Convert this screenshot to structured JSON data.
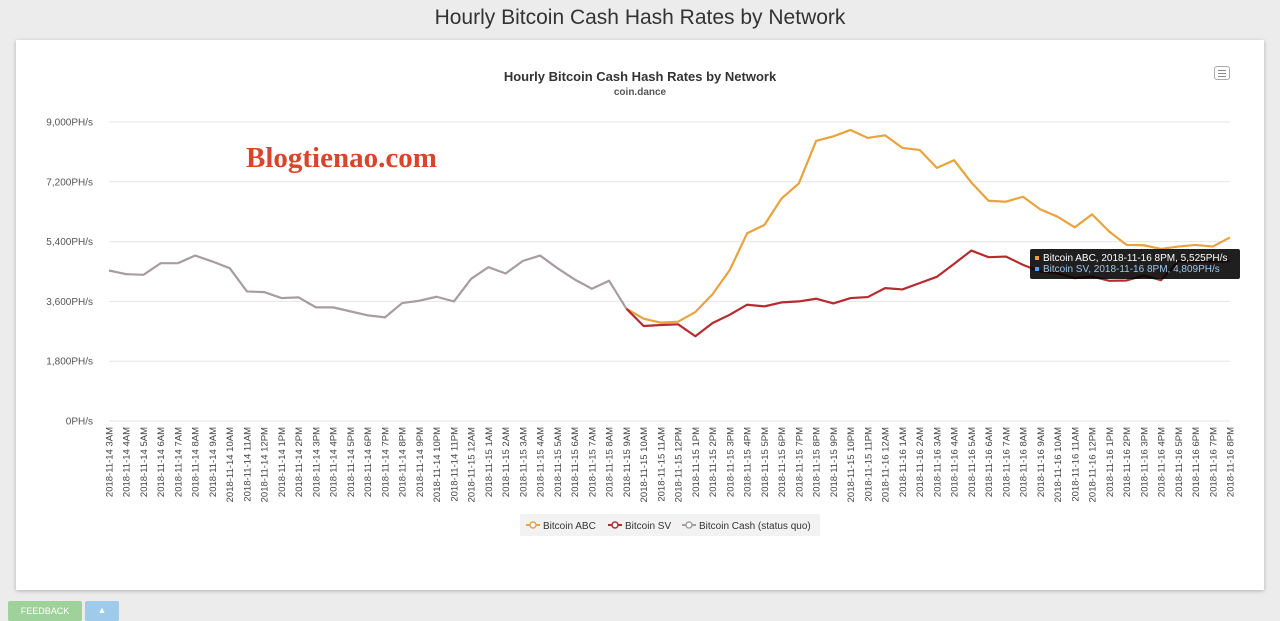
{
  "page": {
    "title": "Hourly Bitcoin Cash Hash Rates by Network"
  },
  "watermark": "Blogtienao.com",
  "tooltip": {
    "line1": "Bitcoin ABC, 2018-11-16 8PM, 5,525PH/s",
    "line2": "Bitcoin SV, 2018-11-16 8PM, 4,809PH/s"
  },
  "footer": {
    "feedback_label": "FEEDBACK",
    "twitter_label": ""
  },
  "colors": {
    "abc": "#e8a33d",
    "sv": "#b72a30",
    "cash": "#a89ca3",
    "grid": "#e6e6e6"
  },
  "icons": {
    "menu": "hamburger-menu-icon",
    "twitter": "twitter-icon"
  },
  "chart_data": {
    "type": "line",
    "title": "Hourly Bitcoin Cash Hash Rates by Network",
    "subtitle": "coin.dance",
    "xlabel": "",
    "ylabel": "",
    "ylim": [
      0,
      9000
    ],
    "yticks": [
      0,
      1800,
      3600,
      5400,
      7200,
      9000
    ],
    "ytick_labels": [
      "0PH/s",
      "1,800PH/s",
      "3,600PH/s",
      "5,400PH/s",
      "7,200PH/s",
      "9,000PH/s"
    ],
    "grid": true,
    "legend_position": "bottom-center",
    "categories": [
      "2018-11-14 3AM",
      "2018-11-14 4AM",
      "2018-11-14 5AM",
      "2018-11-14 6AM",
      "2018-11-14 7AM",
      "2018-11-14 8AM",
      "2018-11-14 9AM",
      "2018-11-14 10AM",
      "2018-11-14 11AM",
      "2018-11-14 12PM",
      "2018-11-14 1PM",
      "2018-11-14 2PM",
      "2018-11-14 3PM",
      "2018-11-14 4PM",
      "2018-11-14 5PM",
      "2018-11-14 6PM",
      "2018-11-14 7PM",
      "2018-11-14 8PM",
      "2018-11-14 9PM",
      "2018-11-14 10PM",
      "2018-11-14 11PM",
      "2018-11-15 12AM",
      "2018-11-15 1AM",
      "2018-11-15 2AM",
      "2018-11-15 3AM",
      "2018-11-15 4AM",
      "2018-11-15 5AM",
      "2018-11-15 6AM",
      "2018-11-15 7AM",
      "2018-11-15 8AM",
      "2018-11-15 9AM",
      "2018-11-15 10AM",
      "2018-11-15 11AM",
      "2018-11-15 12PM",
      "2018-11-15 1PM",
      "2018-11-15 2PM",
      "2018-11-15 3PM",
      "2018-11-15 4PM",
      "2018-11-15 5PM",
      "2018-11-15 6PM",
      "2018-11-15 7PM",
      "2018-11-15 8PM",
      "2018-11-15 9PM",
      "2018-11-15 10PM",
      "2018-11-15 11PM",
      "2018-11-16 12AM",
      "2018-11-16 1AM",
      "2018-11-16 2AM",
      "2018-11-16 3AM",
      "2018-11-16 4AM",
      "2018-11-16 5AM",
      "2018-11-16 6AM",
      "2018-11-16 7AM",
      "2018-11-16 8AM",
      "2018-11-16 9AM",
      "2018-11-16 10AM",
      "2018-11-16 11AM",
      "2018-11-16 12PM",
      "2018-11-16 1PM",
      "2018-11-16 2PM",
      "2018-11-16 3PM",
      "2018-11-16 4PM",
      "2018-11-16 5PM",
      "2018-11-16 6PM",
      "2018-11-16 7PM",
      "2018-11-16 8PM"
    ],
    "series": [
      {
        "name": "Bitcoin ABC",
        "color": "#e8a33d",
        "values": [
          null,
          null,
          null,
          null,
          null,
          null,
          null,
          null,
          null,
          null,
          null,
          null,
          null,
          null,
          null,
          null,
          null,
          null,
          null,
          null,
          null,
          null,
          null,
          null,
          null,
          null,
          null,
          null,
          null,
          null,
          3380,
          3080,
          2960,
          2990,
          3280,
          3820,
          4550,
          5650,
          5900,
          6700,
          7150,
          8430,
          8570,
          8760,
          8520,
          8600,
          8220,
          8160,
          7620,
          7850,
          7180,
          6630,
          6600,
          6750,
          6370,
          6150,
          5830,
          6220,
          5700,
          5300,
          5290,
          5180,
          5250,
          5300,
          5250,
          5525
        ]
      },
      {
        "name": "Bitcoin SV",
        "color": "#b72a30",
        "values": [
          null,
          null,
          null,
          null,
          null,
          null,
          null,
          null,
          null,
          null,
          null,
          null,
          null,
          null,
          null,
          null,
          null,
          null,
          null,
          null,
          null,
          null,
          null,
          null,
          null,
          null,
          null,
          null,
          null,
          null,
          3380,
          2860,
          2890,
          2910,
          2550,
          2950,
          3200,
          3500,
          3450,
          3570,
          3600,
          3680,
          3540,
          3700,
          3730,
          4000,
          3960,
          4150,
          4340,
          4730,
          5130,
          4930,
          4950,
          4700,
          4500,
          4450,
          4300,
          4350,
          4220,
          4230,
          4380,
          4240,
          4800,
          4800,
          4800,
          4809
        ]
      },
      {
        "name": "Bitcoin Cash (status quo)",
        "color": "#a89ca3",
        "values": [
          4530,
          4420,
          4400,
          4750,
          4750,
          4980,
          4800,
          4600,
          3900,
          3880,
          3700,
          3720,
          3420,
          3420,
          3300,
          3180,
          3120,
          3550,
          3620,
          3740,
          3600,
          4280,
          4630,
          4440,
          4820,
          4980,
          4600,
          4260,
          3980,
          4220,
          3380,
          null,
          null,
          null,
          null,
          null,
          null,
          null,
          null,
          null,
          null,
          null,
          null,
          null,
          null,
          null,
          null,
          null,
          null,
          null,
          null,
          null,
          null,
          null,
          null,
          null,
          null,
          null,
          null,
          null,
          null,
          null,
          null,
          null,
          null,
          null
        ]
      }
    ]
  }
}
